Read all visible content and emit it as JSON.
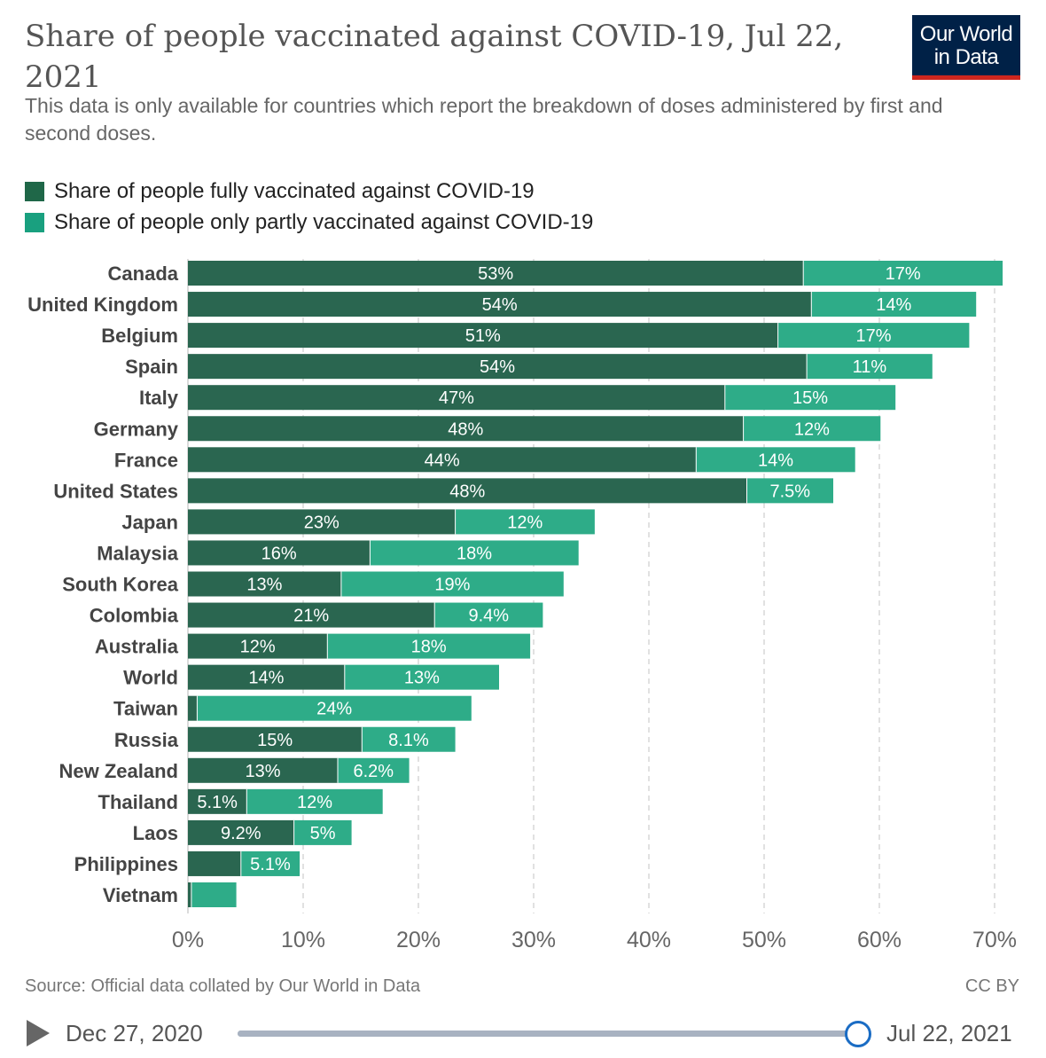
{
  "header": {
    "title": "Share of people vaccinated against COVID-19, Jul 22, 2021",
    "subtitle": "This data is only available for countries which report the breakdown of doses administered by first and second doses.",
    "logo_line1": "Our World",
    "logo_line2": "in Data"
  },
  "legend": [
    {
      "label": "Share of people fully vaccinated against COVID-19",
      "color": "#1f6748"
    },
    {
      "label": "Share of people only partly vaccinated against COVID-19",
      "color": "#19a07f"
    }
  ],
  "footer": {
    "source": "Source: Official data collated by Our World in Data",
    "license": "CC BY"
  },
  "timeline": {
    "start": "Dec 27, 2020",
    "end": "Jul 22, 2021",
    "position": 1.0
  },
  "colors": {
    "fully": "#2a6650",
    "partly": "#2eac88",
    "label": "#444444",
    "grid": "#d7d7d7"
  },
  "chart_data": {
    "type": "bar",
    "orientation": "horizontal",
    "stacked": true,
    "categories": [
      "Canada",
      "United Kingdom",
      "Belgium",
      "Spain",
      "Italy",
      "Germany",
      "France",
      "United States",
      "Japan",
      "Malaysia",
      "South Korea",
      "Colombia",
      "Australia",
      "World",
      "Taiwan",
      "Russia",
      "New Zealand",
      "Thailand",
      "Laos",
      "Philippines",
      "Vietnam"
    ],
    "series": [
      {
        "name": "Share of people fully vaccinated against COVID-19",
        "values": [
          53.4,
          54.1,
          51.2,
          53.7,
          46.6,
          48.2,
          44.1,
          48.5,
          23.2,
          15.8,
          13.3,
          21.4,
          12.1,
          13.6,
          0.8,
          15.1,
          13.0,
          5.1,
          9.2,
          4.6,
          0.3
        ],
        "labels": [
          "53%",
          "54%",
          "51%",
          "54%",
          "47%",
          "48%",
          "44%",
          "48%",
          "23%",
          "16%",
          "13%",
          "21%",
          "12%",
          "14%",
          "",
          "15%",
          "13%",
          "5.1%",
          "9.2%",
          "",
          ""
        ]
      },
      {
        "name": "Share of people only partly vaccinated against COVID-19",
        "values": [
          17.3,
          14.3,
          16.6,
          10.9,
          14.8,
          11.9,
          13.8,
          7.5,
          12.1,
          18.1,
          19.3,
          9.4,
          17.6,
          13.4,
          23.8,
          8.1,
          6.2,
          11.8,
          5.0,
          5.1,
          3.9
        ],
        "labels": [
          "17%",
          "14%",
          "17%",
          "11%",
          "15%",
          "12%",
          "14%",
          "7.5%",
          "12%",
          "18%",
          "19%",
          "9.4%",
          "18%",
          "13%",
          "24%",
          "8.1%",
          "6.2%",
          "12%",
          "5%",
          "5.1%",
          ""
        ]
      }
    ],
    "xlim": [
      0,
      70
    ],
    "xticks": [
      0,
      10,
      20,
      30,
      40,
      50,
      60,
      70
    ],
    "xtick_labels": [
      "0%",
      "10%",
      "20%",
      "30%",
      "40%",
      "50%",
      "60%",
      "70%"
    ],
    "grid": "vertical dashed",
    "legend_position": "top-left"
  }
}
